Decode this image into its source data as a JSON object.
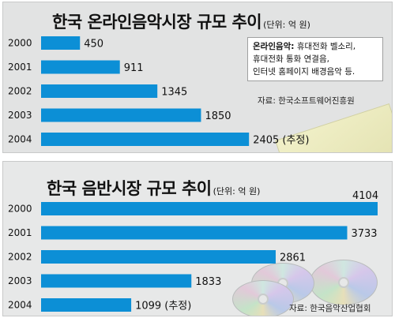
{
  "chart_data": [
    {
      "type": "bar",
      "orientation": "horizontal",
      "title": "한국 온라인음악시장 규모 추이",
      "unit": "(단위: 억 원)",
      "categories": [
        "2000",
        "2001",
        "2002",
        "2003",
        "2004"
      ],
      "values": [
        450,
        911,
        1345,
        1850,
        2405
      ],
      "value_labels": [
        "450",
        "911",
        "1345",
        "1850",
        "2405 (추정)"
      ],
      "xlim": [
        0,
        2650
      ],
      "grid": false,
      "legend_note": {
        "term": "온라인음악:",
        "lines": [
          "휴대전화 벨소리,",
          "휴대전화 통화 연결음,",
          "인터넷 홈페이지 배경음악 등."
        ]
      },
      "source": "자료: 한국소프트웨어진흥원"
    },
    {
      "type": "bar",
      "orientation": "horizontal",
      "title": "한국 음반시장 규모 추이",
      "unit": "(단위: 억 원)",
      "categories": [
        "2000",
        "2001",
        "2002",
        "2003",
        "2004"
      ],
      "values": [
        4104,
        3733,
        2861,
        1833,
        1099
      ],
      "value_labels": [
        "4104",
        "3733",
        "2861",
        "1833",
        "1099 (추정)"
      ],
      "xlim": [
        0,
        4104
      ],
      "grid": false,
      "source": "자료: 한국음악산업협회"
    }
  ],
  "colors": {
    "bar": "#0c8fd6",
    "panel": "#e2e3e3"
  }
}
